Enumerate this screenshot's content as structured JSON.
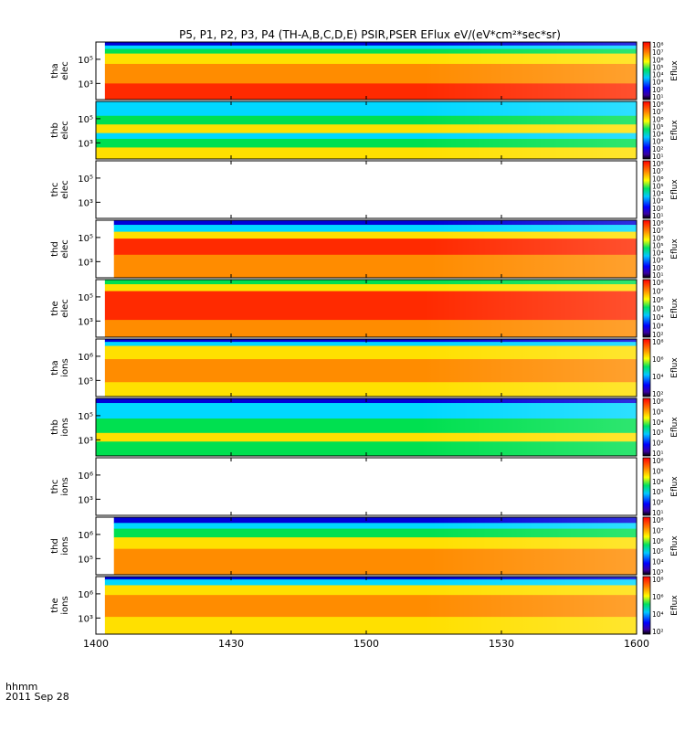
{
  "title": "P5, P1, P2, P3, P4 (TH-A,B,C,D,E) PSIR,PSER EFlux eV/(eV*cm²*sec*sr)",
  "time_axis": {
    "label": "hhmm",
    "date": "2011 Sep 28",
    "ticks": [
      "1400",
      "1430",
      "1500",
      "1530",
      "1600"
    ]
  },
  "colorbar_label": "Eflux",
  "colors": {
    "blue": "#0000d8",
    "cyan": "#00d8ff",
    "green": "#00e050",
    "yellow": "#ffe000",
    "orange": "#ff8c00",
    "red": "#ff2a00"
  },
  "chart_data": [
    {
      "type": "heatmap",
      "ylabel": [
        "tha",
        "elec"
      ],
      "yticks": [
        "10⁵",
        "10³"
      ],
      "cbar_ticks": [
        "10⁸",
        "10⁷",
        "10⁶",
        "10⁵",
        "10⁴",
        "10³",
        "10²",
        "10¹"
      ],
      "data_start_min": 2,
      "data": true,
      "bands": [
        [
          "blue",
          0.06
        ],
        [
          "cyan",
          0.12
        ],
        [
          "green",
          0.2
        ],
        [
          "yellow",
          0.38
        ],
        [
          "orange",
          0.72
        ],
        [
          "red",
          1.0
        ]
      ]
    },
    {
      "type": "heatmap",
      "ylabel": [
        "thb",
        "elec"
      ],
      "yticks": [
        "10⁵",
        "10³"
      ],
      "cbar_ticks": [
        "10⁸",
        "10⁷",
        "10⁶",
        "10⁵",
        "10⁴",
        "10³",
        "10²",
        "10¹"
      ],
      "data_start_min": 0,
      "data": true,
      "bands": [
        [
          "cyan",
          0.25
        ],
        [
          "green",
          0.4
        ],
        [
          "yellow",
          0.55
        ],
        [
          "cyan",
          0.65
        ],
        [
          "green",
          0.8
        ],
        [
          "yellow",
          1.0
        ]
      ]
    },
    {
      "type": "heatmap",
      "ylabel": [
        "thc",
        "elec"
      ],
      "yticks": [
        "10⁵",
        "10³"
      ],
      "cbar_ticks": [
        "10⁸",
        "10⁷",
        "10⁶",
        "10⁵",
        "10⁴",
        "10³",
        "10²",
        "10¹"
      ],
      "data_start_min": 0,
      "data": false,
      "bands": []
    },
    {
      "type": "heatmap",
      "ylabel": [
        "thd",
        "elec"
      ],
      "yticks": [
        "10⁵",
        "10³"
      ],
      "cbar_ticks": [
        "10⁸",
        "10⁷",
        "10⁶",
        "10⁵",
        "10⁴",
        "10³",
        "10²",
        "10¹"
      ],
      "data_start_min": 4,
      "data": true,
      "bands": [
        [
          "blue",
          0.08
        ],
        [
          "cyan",
          0.2
        ],
        [
          "yellow",
          0.32
        ],
        [
          "red",
          0.6
        ],
        [
          "orange",
          1.0
        ]
      ]
    },
    {
      "type": "heatmap",
      "ylabel": [
        "the",
        "elec"
      ],
      "yticks": [
        "10⁵",
        "10³"
      ],
      "cbar_ticks": [
        "10⁸",
        "10⁷",
        "10⁶",
        "10⁵",
        "10⁴",
        "10³",
        "10²"
      ],
      "data_start_min": 2,
      "data": true,
      "bands": [
        [
          "green",
          0.08
        ],
        [
          "yellow",
          0.2
        ],
        [
          "red",
          0.7
        ],
        [
          "orange",
          1.0
        ]
      ]
    },
    {
      "type": "heatmap",
      "ylabel": [
        "tha",
        "ions"
      ],
      "yticks": [
        "10⁶",
        "10⁵"
      ],
      "cbar_ticks": [
        "10⁸",
        "10⁶",
        "10⁴",
        "10²"
      ],
      "data_start_min": 2,
      "data": true,
      "bands": [
        [
          "blue",
          0.05
        ],
        [
          "cyan",
          0.12
        ],
        [
          "yellow",
          0.35
        ],
        [
          "orange",
          0.75
        ],
        [
          "yellow",
          1.0
        ]
      ]
    },
    {
      "type": "heatmap",
      "ylabel": [
        "thb",
        "ions"
      ],
      "yticks": [
        "10⁵",
        "10³"
      ],
      "cbar_ticks": [
        "10⁶",
        "10⁵",
        "10⁴",
        "10³",
        "10²",
        "10¹"
      ],
      "data_start_min": 0,
      "data": true,
      "bands": [
        [
          "blue",
          0.08
        ],
        [
          "cyan",
          0.35
        ],
        [
          "green",
          0.6
        ],
        [
          "yellow",
          0.75
        ],
        [
          "green",
          1.0
        ]
      ]
    },
    {
      "type": "heatmap",
      "ylabel": [
        "thc",
        "ions"
      ],
      "yticks": [
        "10⁶",
        "10³"
      ],
      "cbar_ticks": [
        "10⁶",
        "10⁵",
        "10⁴",
        "10³",
        "10²",
        "10¹"
      ],
      "data_start_min": 0,
      "data": false,
      "bands": []
    },
    {
      "type": "heatmap",
      "ylabel": [
        "thd",
        "ions"
      ],
      "yticks": [
        "10⁶",
        "10⁵"
      ],
      "cbar_ticks": [
        "10⁸",
        "10⁷",
        "10⁶",
        "10⁵",
        "10⁴",
        "10³"
      ],
      "data_start_min": 4,
      "data": true,
      "bands": [
        [
          "blue",
          0.1
        ],
        [
          "cyan",
          0.2
        ],
        [
          "green",
          0.35
        ],
        [
          "yellow",
          0.55
        ],
        [
          "orange",
          1.0
        ]
      ]
    },
    {
      "type": "heatmap",
      "ylabel": [
        "the",
        "ions"
      ],
      "yticks": [
        "10⁶",
        "10³"
      ],
      "cbar_ticks": [
        "10⁸",
        "10⁶",
        "10⁴",
        "10²"
      ],
      "data_start_min": 2,
      "data": true,
      "bands": [
        [
          "blue",
          0.05
        ],
        [
          "cyan",
          0.15
        ],
        [
          "yellow",
          0.32
        ],
        [
          "orange",
          0.7
        ],
        [
          "yellow",
          1.0
        ]
      ]
    }
  ]
}
